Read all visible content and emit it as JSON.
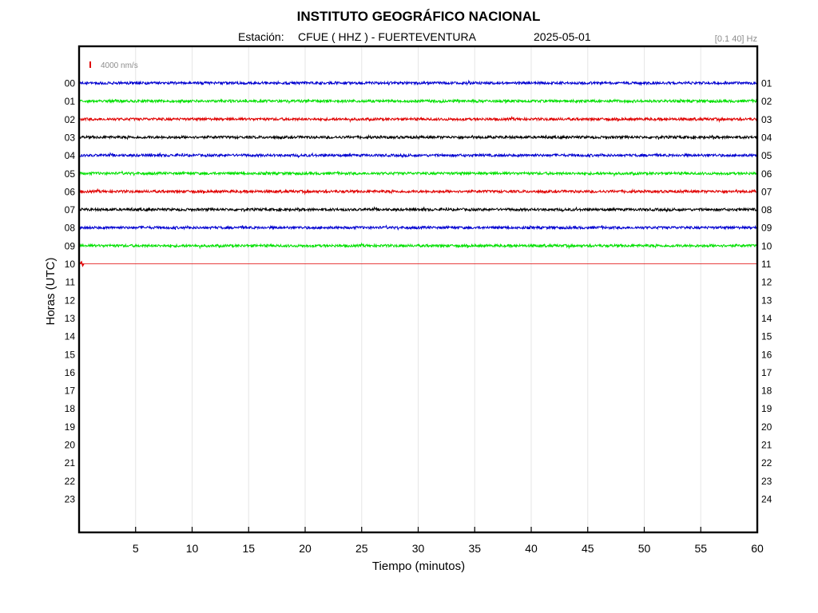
{
  "header": {
    "title": "INSTITUTO GEOGRÁFICO NACIONAL",
    "station_label": "Estación:",
    "station": "CFUE ( HHZ ) - FUERTEVENTURA",
    "date": "2025-05-01",
    "filter": "[0.1 40] Hz"
  },
  "chart_data": {
    "type": "line",
    "title": "INSTITUTO GEOGRÁFICO NACIONAL",
    "xlabel": "Tiempo (minutos)",
    "ylabel": "Horas (UTC)",
    "xlim": [
      0,
      60
    ],
    "x_ticks": [
      "5",
      "10",
      "15",
      "20",
      "25",
      "30",
      "35",
      "40",
      "45",
      "50",
      "55",
      "60"
    ],
    "y_ticks_left": [
      "00",
      "01",
      "02",
      "03",
      "04",
      "05",
      "06",
      "07",
      "08",
      "09",
      "10",
      "11",
      "12",
      "13",
      "14",
      "15",
      "16",
      "17",
      "18",
      "19",
      "20",
      "21",
      "22",
      "23"
    ],
    "y_ticks_right": [
      "01",
      "02",
      "03",
      "04",
      "05",
      "06",
      "07",
      "08",
      "09",
      "10",
      "11",
      "12",
      "13",
      "14",
      "15",
      "16",
      "17",
      "18",
      "19",
      "20",
      "21",
      "22",
      "23",
      "24"
    ],
    "grid": "vertical",
    "scale_bar": {
      "value": 4000,
      "label": "4000 nm/s",
      "color": "#e00000"
    },
    "trace_colors": [
      "#0000d0",
      "#00e000",
      "#e00000",
      "#000000"
    ],
    "traces": [
      {
        "hour": "00",
        "start_min": 0,
        "end_min": 60,
        "color": "#0000d0"
      },
      {
        "hour": "01",
        "start_min": 0,
        "end_min": 60,
        "color": "#00e000"
      },
      {
        "hour": "02",
        "start_min": 0,
        "end_min": 60,
        "color": "#e00000"
      },
      {
        "hour": "03",
        "start_min": 0,
        "end_min": 60,
        "color": "#000000"
      },
      {
        "hour": "04",
        "start_min": 0,
        "end_min": 60,
        "color": "#0000d0"
      },
      {
        "hour": "05",
        "start_min": 0,
        "end_min": 60,
        "color": "#00e000"
      },
      {
        "hour": "06",
        "start_min": 0,
        "end_min": 60,
        "color": "#e00000"
      },
      {
        "hour": "07",
        "start_min": 0,
        "end_min": 60,
        "color": "#000000"
      },
      {
        "hour": "08",
        "start_min": 0,
        "end_min": 60,
        "color": "#0000d0"
      },
      {
        "hour": "09",
        "start_min": 0,
        "end_min": 60,
        "color": "#00e000"
      },
      {
        "hour": "10",
        "start_min": 0,
        "end_min": 0.2,
        "color": "#e00000"
      }
    ]
  }
}
